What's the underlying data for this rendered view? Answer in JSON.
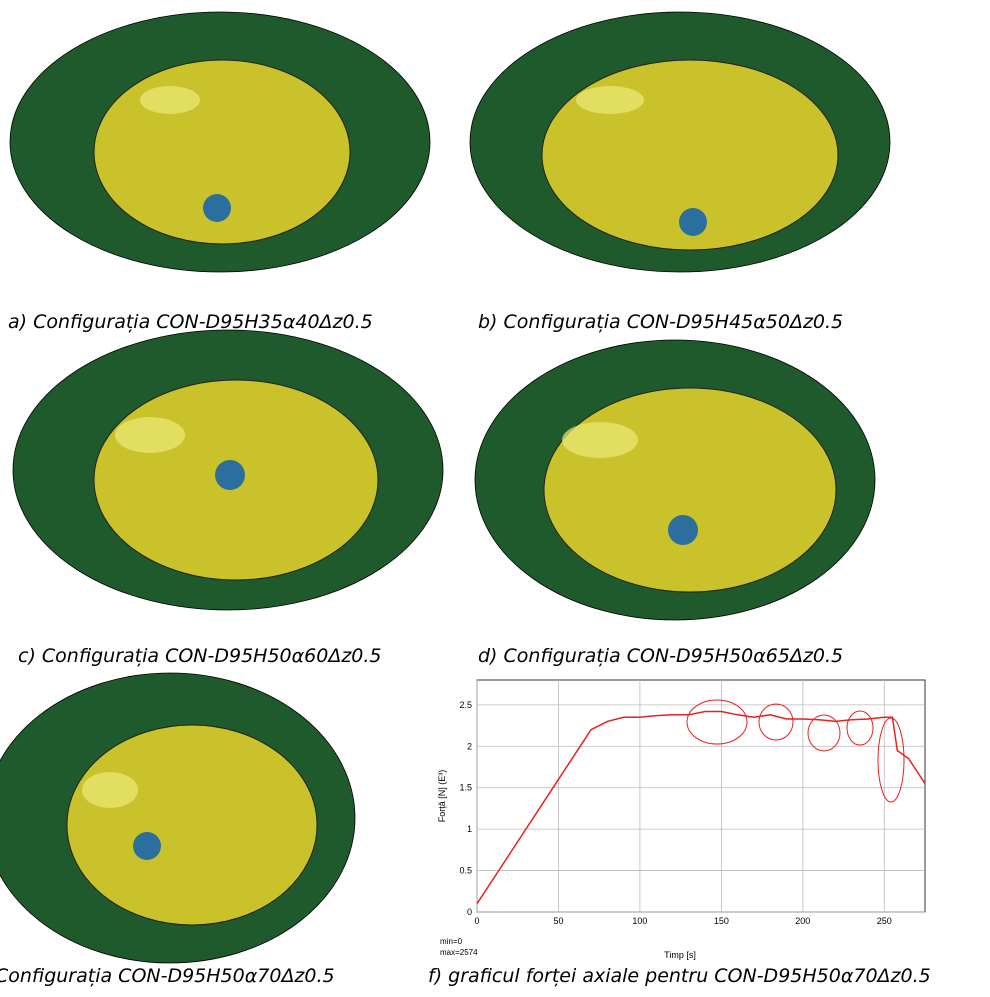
{
  "figures": [
    {
      "caption": "a) Configurația CON-D95H35α40Δz0.5"
    },
    {
      "caption": "b) Configurația CON-D95H45α50Δz0.5"
    },
    {
      "caption": "c) Configurația CON-D95H50α60Δz0.5"
    },
    {
      "caption": "d) Configurația CON-D95H50α65Δz0.5"
    },
    {
      "caption": "Configurația CON-D95H50α70Δz0.5"
    },
    {
      "caption": "f) graficul forței axiale pentru CON-D95H50α70Δz0.5"
    }
  ],
  "chart_data": {
    "type": "line",
    "x_label": "Timp [s]",
    "y_label": "Forță [N] (E³)",
    "annotations": [
      "min=0",
      "max=2574"
    ],
    "x": [
      0,
      10,
      20,
      30,
      40,
      50,
      60,
      70,
      80,
      90,
      100,
      110,
      120,
      130,
      140,
      150,
      160,
      170,
      180,
      190,
      200,
      210,
      220,
      230,
      240,
      250,
      255,
      258,
      265,
      270,
      275
    ],
    "series": [
      {
        "color": "#e8211c",
        "values": [
          0.1,
          0.4,
          0.7,
          1.0,
          1.3,
          1.6,
          1.9,
          2.2,
          2.3,
          2.35,
          2.35,
          2.37,
          2.38,
          2.38,
          2.42,
          2.42,
          2.38,
          2.35,
          2.38,
          2.33,
          2.33,
          2.32,
          2.3,
          2.32,
          2.33,
          2.35,
          2.35,
          1.95,
          1.85,
          1.7,
          1.55
        ]
      }
    ],
    "xlim": [
      0,
      275
    ],
    "xticks": [
      0,
      50,
      100,
      150,
      200,
      250
    ],
    "ylim": [
      0,
      2.8
    ],
    "yticks": [
      0,
      0.5,
      1,
      1.5,
      2,
      2.5
    ],
    "grid": true
  }
}
